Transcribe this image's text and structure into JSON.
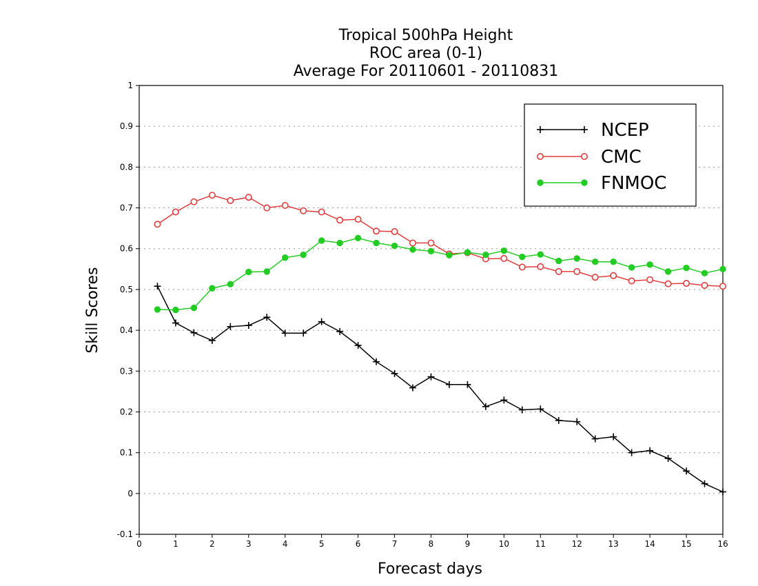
{
  "chart_data": {
    "type": "line",
    "title_lines": [
      "Tropical 500hPa Height",
      "ROC area (0-1)",
      "Average For 20110601 - 20110831"
    ],
    "xlabel": "Forecast days",
    "ylabel": "Skill Scores",
    "xlim": [
      0,
      16
    ],
    "ylim": [
      -0.1,
      1
    ],
    "x_ticks": [
      0,
      1,
      2,
      3,
      4,
      5,
      6,
      7,
      8,
      9,
      10,
      11,
      12,
      13,
      14,
      15,
      16
    ],
    "x_tick_labels": [
      "0",
      "1",
      "2",
      "3",
      "4",
      "5",
      "6",
      "7",
      "8",
      "9",
      "10",
      "11",
      "12",
      "13",
      "14",
      "15",
      "16"
    ],
    "y_ticks": [
      -0.1,
      0,
      0.1,
      0.2,
      0.3,
      0.4,
      0.5,
      0.6,
      0.7,
      0.8,
      0.9,
      1
    ],
    "y_tick_labels": [
      "-0.1",
      "0",
      "0.1",
      "0.2",
      "0.3",
      "0.4",
      "0.5",
      "0.6",
      "0.7",
      "0.8",
      "0.9",
      "1"
    ],
    "grid": true,
    "legend_position": "top-right",
    "x": [
      0.5,
      1,
      1.5,
      2,
      2.5,
      3,
      3.5,
      4,
      4.5,
      5,
      5.5,
      6,
      6.5,
      7,
      7.5,
      8,
      8.5,
      9,
      9.5,
      10,
      10.5,
      11,
      11.5,
      12,
      12.5,
      13,
      13.5,
      14,
      14.5,
      15,
      15.5,
      16
    ],
    "series": [
      {
        "name": "NCEP",
        "color": "#000000",
        "marker": "plus",
        "values": [
          0.508,
          0.418,
          0.394,
          0.375,
          0.409,
          0.412,
          0.432,
          0.393,
          0.393,
          0.421,
          0.397,
          0.363,
          0.323,
          0.294,
          0.259,
          0.286,
          0.267,
          0.267,
          0.213,
          0.229,
          0.205,
          0.207,
          0.179,
          0.176,
          0.134,
          0.139,
          0.1,
          0.105,
          0.086,
          0.055,
          0.024,
          0.004
        ]
      },
      {
        "name": "CMC",
        "color": "#e03c3c",
        "marker": "open-circle",
        "values": [
          0.66,
          0.69,
          0.715,
          0.731,
          0.718,
          0.726,
          0.7,
          0.706,
          0.693,
          0.69,
          0.67,
          0.672,
          0.643,
          0.642,
          0.614,
          0.614,
          0.587,
          0.59,
          0.575,
          0.576,
          0.555,
          0.556,
          0.544,
          0.544,
          0.53,
          0.534,
          0.521,
          0.524,
          0.514,
          0.515,
          0.51,
          0.508
        ]
      },
      {
        "name": "FNMOC",
        "color": "#22cc22",
        "marker": "filled-circle",
        "values": [
          0.451,
          0.45,
          0.455,
          0.503,
          0.513,
          0.543,
          0.544,
          0.578,
          0.585,
          0.62,
          0.614,
          0.626,
          0.614,
          0.607,
          0.598,
          0.594,
          0.584,
          0.591,
          0.585,
          0.595,
          0.58,
          0.586,
          0.57,
          0.576,
          0.568,
          0.568,
          0.554,
          0.561,
          0.544,
          0.553,
          0.54,
          0.55
        ]
      }
    ]
  }
}
